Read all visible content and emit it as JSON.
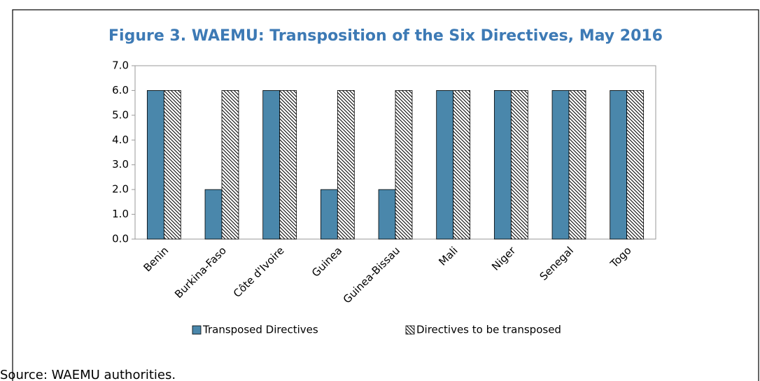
{
  "chart_data": {
    "type": "bar",
    "title": "Figure 3. WAEMU: Transposition of the Six Directives, May 2016",
    "categories": [
      "Benin",
      "Burkina-Faso",
      "Côte d'Ivoire",
      "Guinea",
      "Guinea-Bissau",
      "Mali",
      "Niger",
      "Senegal",
      "Togo"
    ],
    "series": [
      {
        "name": "Transposed Directives",
        "color": "#4a87ab",
        "values": [
          6,
          2,
          6,
          2,
          2,
          6,
          6,
          6,
          6
        ]
      },
      {
        "name": "Directives to be transposed",
        "color": "#000000",
        "hatch": true,
        "values": [
          6,
          6,
          6,
          6,
          6,
          6,
          6,
          6,
          6
        ]
      }
    ],
    "ylim": [
      0,
      7
    ],
    "yticks": [
      {
        "value": 0,
        "label": "0.0"
      },
      {
        "value": 1,
        "label": "1.0"
      },
      {
        "value": 2,
        "label": "2.0"
      },
      {
        "value": 3,
        "label": "3.0"
      },
      {
        "value": 4,
        "label": "4.0"
      },
      {
        "value": 5,
        "label": "5.0"
      },
      {
        "value": 6,
        "label": "6.0"
      },
      {
        "value": 7,
        "label": "7.0"
      }
    ],
    "grid": false,
    "legend": "bottom",
    "source": "Source: WAEMU authorities."
  }
}
